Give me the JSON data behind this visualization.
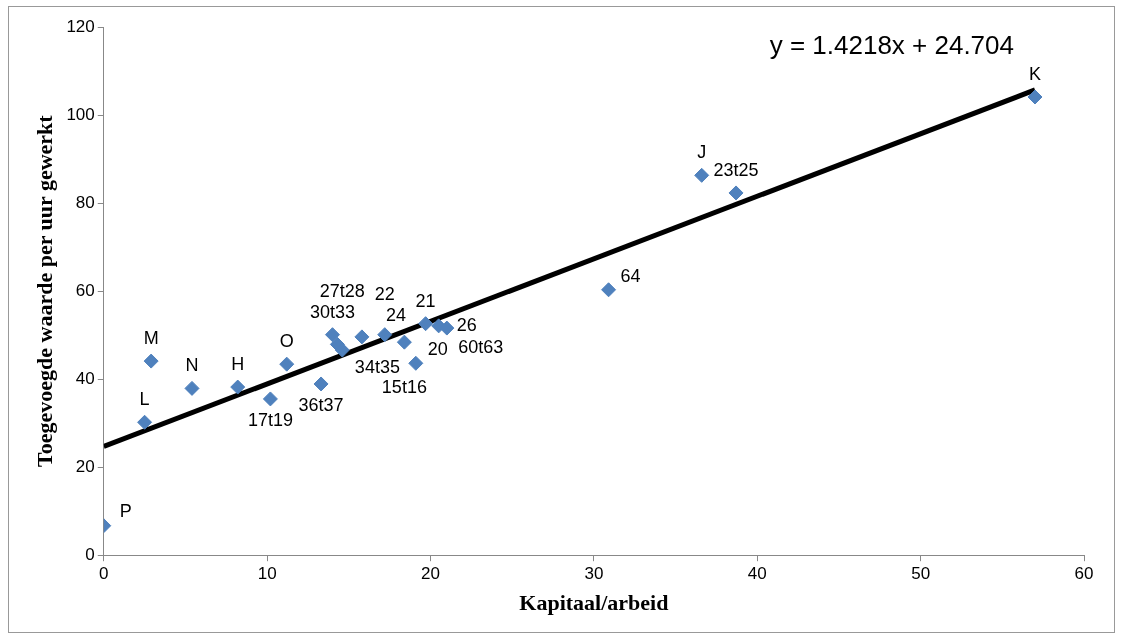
{
  "chart_data": {
    "type": "scatter",
    "xlabel": "Kapitaal/arbeid",
    "ylabel": "Toegevoegde waarde per uur gewerkt",
    "xlim": [
      0,
      60
    ],
    "xticks": [
      0,
      10,
      20,
      30,
      40,
      50,
      60
    ],
    "ylim": [
      0,
      120
    ],
    "yticks": [
      0,
      20,
      40,
      60,
      80,
      100,
      120
    ],
    "grid": false,
    "legend": false,
    "marker": "diamond",
    "series": [
      {
        "color": "#4f81bd",
        "x": [
          0,
          2.5,
          2.9,
          5.4,
          8.2,
          10.2,
          11.2,
          13.3,
          14.0,
          14.3,
          14.6,
          15.8,
          17.2,
          18.4,
          19.1,
          19.7,
          20.5,
          21.0,
          30.9,
          36.6,
          38.7,
          57.0
        ],
        "values": [
          6.7,
          30.2,
          44.1,
          37.9,
          38.2,
          35.5,
          43.4,
          38.9,
          50.1,
          47.9,
          46.6,
          49.6,
          50.1,
          48.4,
          43.6,
          52.6,
          52.1,
          51.6,
          60.3,
          86.3,
          82.3,
          104.1
        ]
      },
      {
        "type": "line",
        "color": "#000000",
        "marker": "none",
        "x": [
          0,
          57
        ],
        "values": [
          24.7,
          105.7
        ]
      }
    ],
    "annotations": [
      "y = 1.4218x + 24.704",
      {
        "text": "P",
        "x": 0,
        "y": 6.7
      },
      {
        "text": "L",
        "x": 2.5,
        "y": 30.2
      },
      {
        "text": "M",
        "x": 2.9,
        "y": 44.1
      },
      {
        "text": "N",
        "x": 5.4,
        "y": 37.9
      },
      {
        "text": "H",
        "x": 8.2,
        "y": 38.2
      },
      {
        "text": "17t19",
        "x": 10.2,
        "y": 35.5
      },
      {
        "text": "O",
        "x": 11.2,
        "y": 43.4
      },
      {
        "text": "36t37",
        "x": 13.3,
        "y": 38.9
      },
      {
        "text": "30t33",
        "x": 14.0,
        "y": 50.1
      },
      {
        "text": "34t35",
        "x": 14.3,
        "y": 47.9
      },
      {
        "text": "27t28",
        "x": 14.6,
        "y": 46.6
      },
      {
        "text": "24",
        "x": 15.8,
        "y": 49.6
      },
      {
        "text": "22",
        "x": 17.2,
        "y": 50.1
      },
      {
        "text": "15t16",
        "x": 18.4,
        "y": 48.4
      },
      {
        "text": "20",
        "x": 19.1,
        "y": 43.6
      },
      {
        "text": "21",
        "x": 19.7,
        "y": 52.6
      },
      {
        "text": "26",
        "x": 20.5,
        "y": 52.1
      },
      {
        "text": "60t63",
        "x": 21.0,
        "y": 51.6
      },
      {
        "text": "64",
        "x": 30.9,
        "y": 60.3
      },
      {
        "text": "J",
        "x": 36.6,
        "y": 86.3
      },
      {
        "text": "23t25",
        "x": 38.7,
        "y": 82.3
      },
      {
        "text": "K",
        "x": 57.0,
        "y": 104.1
      }
    ]
  }
}
